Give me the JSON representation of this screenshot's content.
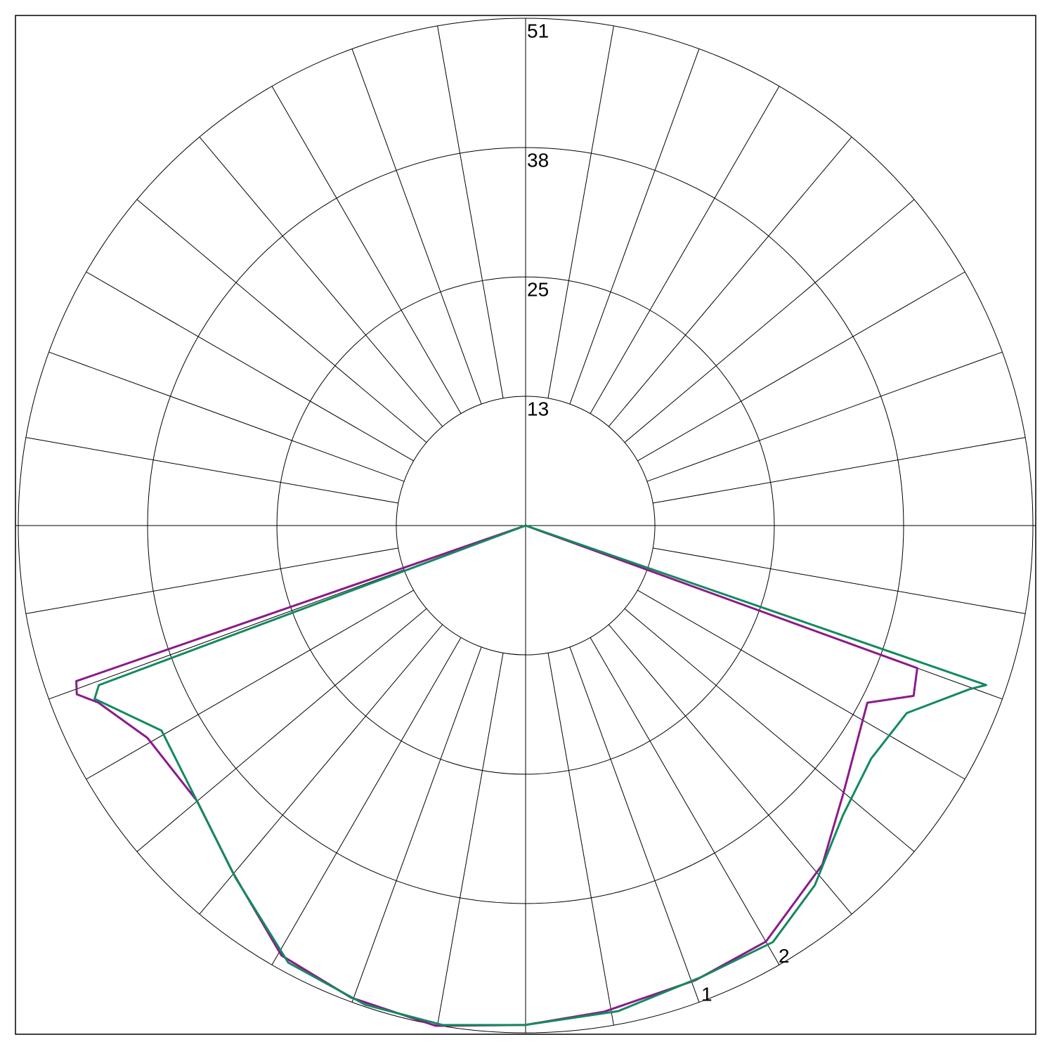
{
  "chart_data": {
    "type": "polar",
    "rlim": [
      0,
      51
    ],
    "rticks": [
      13,
      25,
      38,
      51
    ],
    "series": [
      {
        "name": "1",
        "color": "#8b1a8b",
        "theta": [
          -90,
          -70.9,
          -69.4,
          -67.5,
          -60.7,
          -50,
          -40.3,
          -29.6,
          -20.3,
          -10.2,
          0,
          9.2,
          20.5,
          30,
          41.2,
          49.8,
          62.6,
          66.3,
          70,
          90
        ],
        "values": [
          0,
          47.8,
          48.2,
          46.5,
          43.6,
          43.1,
          45.6,
          49.7,
          50.6,
          51.1,
          50.2,
          49.5,
          48.8,
          48.3,
          45.3,
          41.8,
          38.7,
          42.6,
          41.9,
          0
        ]
      },
      {
        "name": "2",
        "color": "#138a5e",
        "theta": [
          -90,
          -69.5,
          -68.1,
          -60.6,
          -48,
          -39.4,
          -28.5,
          -18.5,
          -9.4,
          0,
          10.8,
          21.4,
          30.7,
          38.8,
          47.6,
          56,
          63.8,
          69.8,
          70.9,
          90
        ],
        "values": [
          0,
          45.8,
          46.7,
          42,
          43.5,
          45.9,
          50,
          50.8,
          50.9,
          50.2,
          49.7,
          48.7,
          48.7,
          46.4,
          43.2,
          41.9,
          42.7,
          47.6,
          49,
          0
        ]
      }
    ]
  }
}
